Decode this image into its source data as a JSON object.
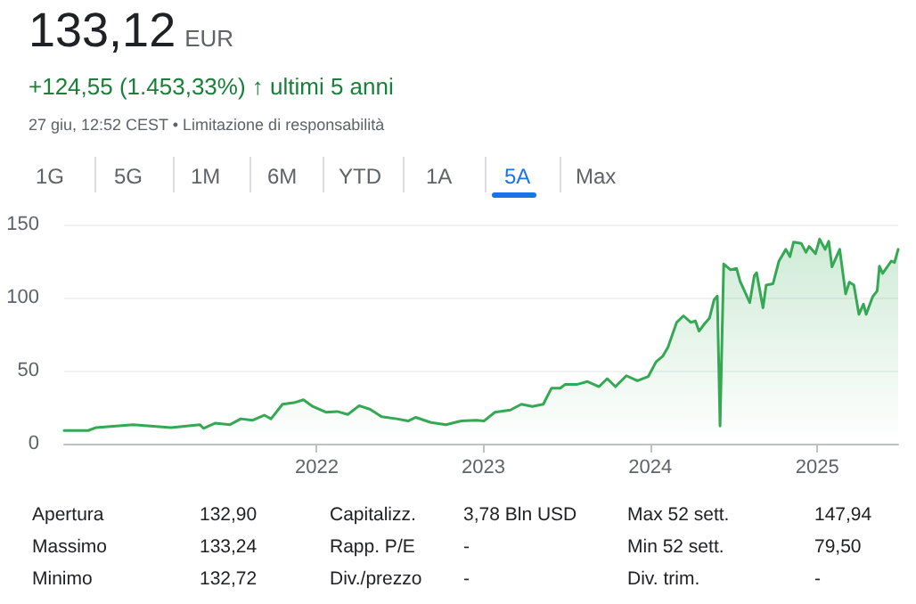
{
  "chart_data": {
    "type": "area",
    "title": "133,12 EUR",
    "subtitle": "+124,55 (1.453,33%) ↑ ultimi 5 anni",
    "annotations": [
      "27 giu, 12:52 CEST • Limitazione di responsabilità",
      "1G",
      "5G",
      "1M",
      "6M",
      "YTD",
      "1A",
      "5A",
      "Max",
      "Apertura",
      "132,90",
      "Capitalizz.",
      "3,78 Bln USD",
      "Max 52 sett.",
      "147,94",
      "Massimo",
      "133,24",
      "Rapp. P/E",
      "-",
      "Min 52 sett.",
      "79,50",
      "Minimo",
      "132,72",
      "Div./prezzo",
      "-",
      "Div. trim.",
      "-"
    ],
    "x": [
      "2020-06-27",
      "2020-08-19",
      "2020-09-05",
      "2020-11-25",
      "2021-02-16",
      "2021-04-20",
      "2021-04-28",
      "2021-05-23",
      "2021-06-25",
      "2021-07-19",
      "2021-08-13",
      "2021-09-08",
      "2021-09-23",
      "2021-10-18",
      "2021-11-12",
      "2021-12-03",
      "2021-12-23",
      "2022-01-21",
      "2022-02-15",
      "2022-03-10",
      "2022-04-04",
      "2022-04-28",
      "2022-05-23",
      "2022-06-25",
      "2022-07-20",
      "2022-08-06",
      "2022-09-08",
      "2022-10-11",
      "2022-11-13",
      "2022-12-16",
      "2023-01-02",
      "2023-01-26",
      "2023-03-01",
      "2023-03-25",
      "2023-04-18",
      "2023-05-12",
      "2023-05-30",
      "2023-06-18",
      "2023-06-29",
      "2023-07-24",
      "2023-08-17",
      "2023-09-11",
      "2023-09-29",
      "2023-10-17",
      "2023-11-10",
      "2023-12-04",
      "2023-12-28",
      "2024-01-14",
      "2024-01-29",
      "2024-02-09",
      "2024-02-28",
      "2024-03-14",
      "2024-03-30",
      "2024-04-09",
      "2024-04-17",
      "2024-04-29",
      "2024-05-10",
      "2024-05-20",
      "2024-05-27",
      "2024-06-02",
      "2024-06-10",
      "2024-06-25",
      "2024-07-08",
      "2024-07-16",
      "2024-08-06",
      "2024-08-16",
      "2024-08-21",
      "2024-09-04",
      "2024-09-11",
      "2024-09-26",
      "2024-10-09",
      "2024-10-24",
      "2024-11-02",
      "2024-11-10",
      "2024-11-27",
      "2024-12-07",
      "2024-12-14",
      "2024-12-28",
      "2025-01-06",
      "2025-01-18",
      "2025-01-26",
      "2025-02-02",
      "2025-02-19",
      "2025-03-04",
      "2025-03-12",
      "2025-03-22",
      "2025-04-02",
      "2025-04-12",
      "2025-04-18",
      "2025-05-02",
      "2025-05-12",
      "2025-05-17",
      "2025-05-24",
      "2025-06-12",
      "2025-06-19",
      "2025-06-27"
    ],
    "series": [
      {
        "color": "#34a853",
        "values": [
          9,
          9,
          11,
          13,
          11,
          13,
          10.5,
          14,
          13,
          17,
          16,
          19.5,
          17,
          27,
          28,
          30,
          25.5,
          21.5,
          22,
          20,
          26,
          23.5,
          18.5,
          17,
          15.5,
          18,
          14.5,
          13,
          15.5,
          16,
          15.5,
          21.5,
          23,
          27,
          25.5,
          27,
          38,
          38,
          40.5,
          40.5,
          42.5,
          39,
          44.5,
          39,
          46.5,
          43,
          46,
          56,
          60,
          66,
          83,
          87.5,
          83,
          84,
          77,
          82,
          86,
          98.5,
          101,
          12,
          123,
          119,
          120,
          111,
          96.5,
          115,
          117,
          93,
          108.5,
          109.5,
          125,
          133,
          128,
          138,
          137,
          131,
          135,
          130,
          140,
          133,
          138.5,
          121,
          133,
          102.5,
          110.5,
          108.5,
          88.5,
          95.5,
          88.5,
          100.5,
          104.5,
          121.5,
          116.5,
          125,
          124,
          133
        ]
      }
    ],
    "xlim": [
      "2020-06-27",
      "2025-06-27"
    ],
    "xticks": [
      "2022",
      "2023",
      "2024",
      "2025"
    ],
    "ylim": [
      0,
      150
    ],
    "yticks": [
      0,
      50,
      100,
      150
    ],
    "grid": "y",
    "marker": "none",
    "line_style": "solid"
  }
}
